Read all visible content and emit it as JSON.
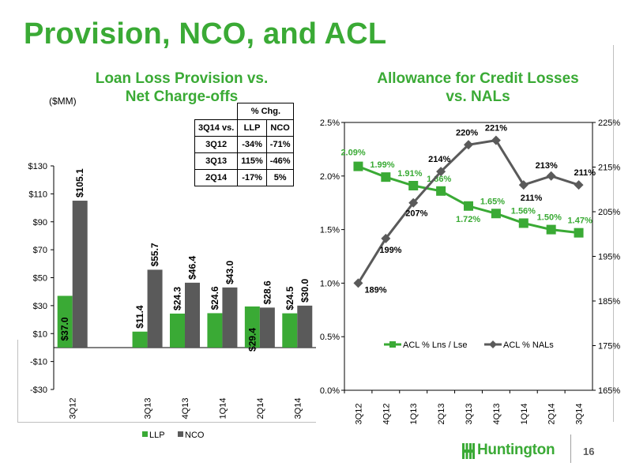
{
  "title": "Provision, NCO, and ACL",
  "page_number": "16",
  "brand": "Huntington",
  "colors": {
    "green": "#3aaa35",
    "gray": "#5a5a5a"
  },
  "left_chart": {
    "title_line1": "Loan Loss Provision vs.",
    "title_line2": "Net Charge-offs",
    "unit": "($MM)"
  },
  "right_chart": {
    "title_line1": "Allowance for Credit Losses",
    "title_line2": "vs. NALs"
  },
  "pct_table": {
    "header": "% Chg.",
    "columns": [
      "3Q14 vs.",
      "LLP",
      "NCO"
    ],
    "rows": [
      [
        "3Q12",
        "-34%",
        "-71%"
      ],
      [
        "3Q13",
        "115%",
        "-46%"
      ],
      [
        "2Q14",
        "-17%",
        "5%"
      ]
    ]
  },
  "chart_data": [
    {
      "type": "bar",
      "categories": [
        "3Q12",
        "",
        "3Q13",
        "4Q13",
        "1Q14",
        "2Q14",
        "3Q14"
      ],
      "series": [
        {
          "name": "LLP",
          "color": "#3aaa35",
          "values": [
            37.0,
            null,
            11.4,
            24.3,
            24.6,
            29.4,
            24.5
          ],
          "labels": [
            "$37.0",
            "",
            "$11.4",
            "$24.3",
            "$24.6",
            "$29.4",
            "$24.5"
          ]
        },
        {
          "name": "NCO",
          "color": "#5a5a5a",
          "values": [
            105.1,
            null,
            55.7,
            46.4,
            43.0,
            28.6,
            30.0
          ],
          "labels": [
            "$105.1",
            "",
            "$55.7",
            "$46.4",
            "$43.0",
            "$28.6",
            "$30.0"
          ]
        }
      ],
      "ylim": [
        -30,
        130
      ],
      "yticks": [
        -30,
        -10,
        10,
        30,
        50,
        70,
        90,
        110,
        130
      ],
      "ytick_labels": [
        "-$30",
        "-$10",
        "$10",
        "$30",
        "$50",
        "$70",
        "$90",
        "$110",
        "$130"
      ],
      "legend": "bottom"
    },
    {
      "type": "line",
      "x": [
        "3Q12",
        "4Q12",
        "1Q13",
        "2Q13",
        "3Q13",
        "4Q13",
        "1Q14",
        "2Q14",
        "3Q14"
      ],
      "series": [
        {
          "name": "ACL % Lns / Lse",
          "axis": "left",
          "color": "#3aaa35",
          "marker": "square",
          "values": [
            2.09,
            1.99,
            1.91,
            1.86,
            1.72,
            1.65,
            1.56,
            1.5,
            1.47
          ],
          "labels": [
            "2.09%",
            "1.99%",
            "1.91%",
            "1.86%",
            "1.72%",
            "1.65%",
            "1.56%",
            "1.50%",
            "1.47%"
          ]
        },
        {
          "name": "ACL % NALs",
          "axis": "right",
          "color": "#5a5a5a",
          "marker": "diamond",
          "values": [
            189,
            199,
            207,
            214,
            220,
            221,
            211,
            213,
            211
          ],
          "labels": [
            "189%",
            "199%",
            "207%",
            "214%",
            "220%",
            "221%",
            "211%",
            "213%",
            "211%"
          ]
        }
      ],
      "ylim_left": [
        0.0,
        2.5
      ],
      "yticks_left": [
        "0.0%",
        "0.5%",
        "1.0%",
        "1.5%",
        "2.0%",
        "2.5%"
      ],
      "ylim_right": [
        165,
        225
      ],
      "yticks_right": [
        "165%",
        "175%",
        "185%",
        "195%",
        "205%",
        "215%",
        "225%"
      ],
      "legend": "inside-bottom"
    }
  ]
}
